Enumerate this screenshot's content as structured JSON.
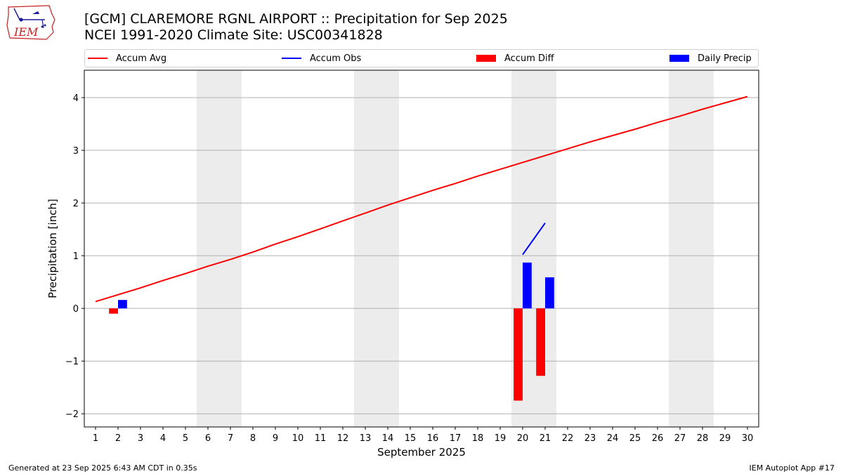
{
  "header": {
    "title_line1": "[GCM] CLAREMORE RGNL AIRPORT :: Precipitation for Sep 2025",
    "title_line2": "NCEI 1991-2020 Climate Site: USC00341828"
  },
  "logo": {
    "text": "IEM",
    "icon": "iem-iowa-weather-logo"
  },
  "footer": {
    "left": "Generated at 23 Sep 2025 6:43 AM CDT in 0.35s",
    "right": "IEM Autoplot App #17"
  },
  "colors": {
    "avg": "#ff0000",
    "obs": "#0000ff",
    "diff": "#ff0000",
    "daily": "#0000ff",
    "weekend": "#ececec",
    "grid": "#b0b0b0"
  },
  "chart_data": {
    "type": "bar",
    "xlabel": "September 2025",
    "ylabel": "Precipitation [inch]",
    "xlim": [
      0.5,
      30.5
    ],
    "ylim": [
      -2.25,
      4.52
    ],
    "yticks": [
      -2,
      -1,
      0,
      1,
      2,
      3,
      4
    ],
    "ytick_labels": [
      "−2",
      "−1",
      "0",
      "1",
      "2",
      "3",
      "4"
    ],
    "days": [
      1,
      2,
      3,
      4,
      5,
      6,
      7,
      8,
      9,
      10,
      11,
      12,
      13,
      14,
      15,
      16,
      17,
      18,
      19,
      20,
      21,
      22,
      23,
      24,
      25,
      26,
      27,
      28,
      29,
      30
    ],
    "grid": "horizontal",
    "weekend_shading": [
      [
        6,
        7
      ],
      [
        13,
        14
      ],
      [
        20,
        21
      ],
      [
        27,
        28
      ]
    ],
    "legend": {
      "placement": "top",
      "entries": [
        {
          "label": "Accum Avg",
          "kind": "line",
          "color": "#ff0000"
        },
        {
          "label": "Accum Obs",
          "kind": "line",
          "color": "#0000ff"
        },
        {
          "label": "Accum Diff",
          "kind": "bar",
          "color": "#ff0000"
        },
        {
          "label": "Daily Precip",
          "kind": "bar",
          "color": "#0000ff"
        }
      ]
    },
    "series": [
      {
        "name": "Accum Avg",
        "type": "line",
        "x": [
          1,
          2,
          3,
          4,
          5,
          6,
          7,
          8,
          9,
          10,
          11,
          12,
          13,
          14,
          15,
          16,
          17,
          18,
          19,
          20,
          21,
          22,
          23,
          24,
          25,
          26,
          27,
          28,
          29,
          30
        ],
        "values": [
          0.13,
          0.26,
          0.39,
          0.53,
          0.66,
          0.8,
          0.93,
          1.07,
          1.22,
          1.36,
          1.51,
          1.66,
          1.81,
          1.96,
          2.1,
          2.24,
          2.37,
          2.51,
          2.64,
          2.77,
          2.9,
          3.03,
          3.16,
          3.28,
          3.4,
          3.53,
          3.65,
          3.78,
          3.9,
          4.02
        ]
      },
      {
        "name": "Accum Obs",
        "type": "line",
        "x": [
          20,
          21
        ],
        "values": [
          1.02,
          1.62
        ]
      },
      {
        "name": "Accum Diff",
        "type": "bar",
        "x": [
          2,
          20,
          21
        ],
        "values": [
          -0.1,
          -1.75,
          -1.28
        ]
      },
      {
        "name": "Daily Precip",
        "type": "bar",
        "x": [
          2,
          20,
          21
        ],
        "values": [
          0.16,
          0.87,
          0.59
        ]
      }
    ]
  }
}
